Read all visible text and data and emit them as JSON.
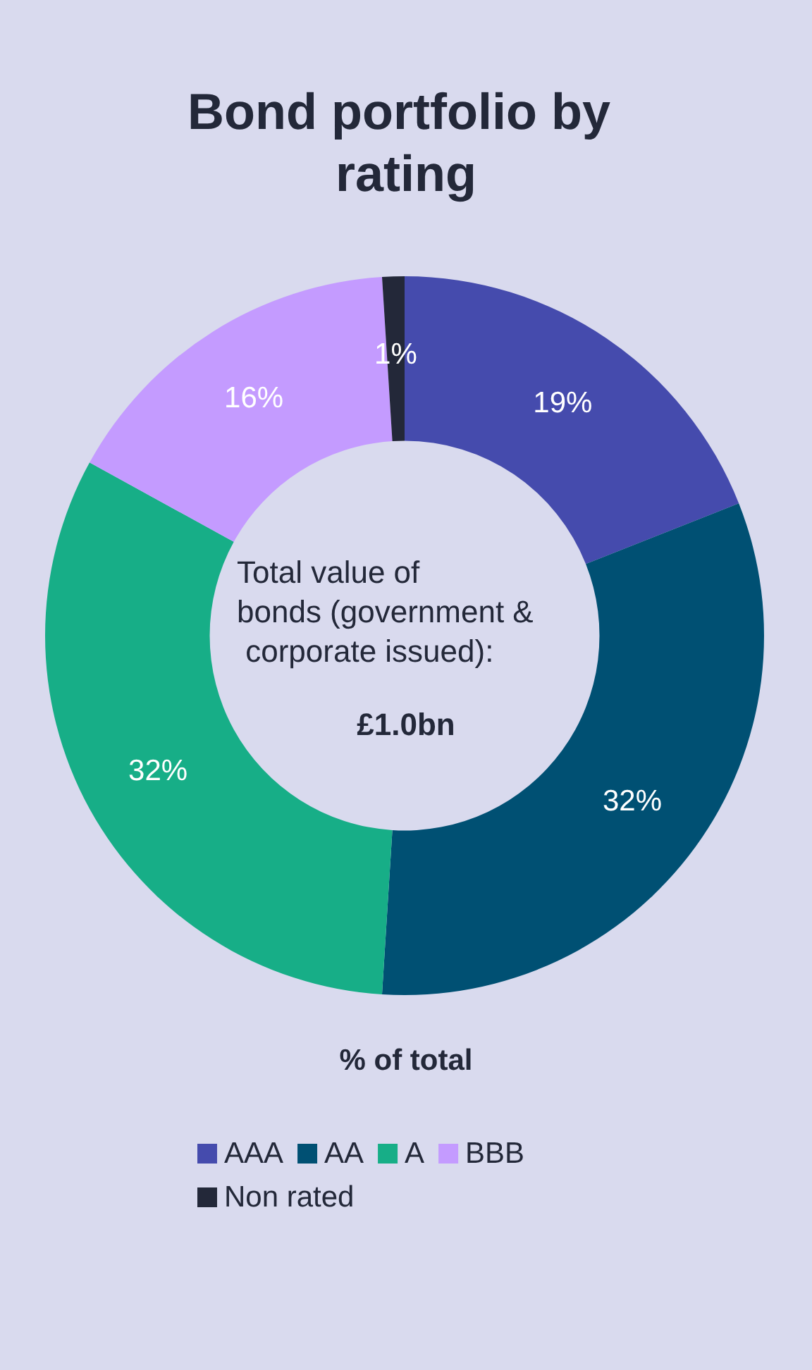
{
  "chart_data": {
    "type": "donut",
    "title": "Bond portfolio by rating",
    "legend_title": "% of total",
    "categories": [
      "AAA",
      "AA",
      "A",
      "BBB",
      "Non rated"
    ],
    "values": [
      19,
      32,
      32,
      16,
      1
    ],
    "value_labels": [
      "19%",
      "32%",
      "32%",
      "16%",
      "1%"
    ],
    "colors": [
      "#454bad",
      "#005073",
      "#17ae87",
      "#c49bff",
      "#232839"
    ],
    "annotations": [
      "Total value of bonds (government & corporate issued):",
      "£1.0bn"
    ],
    "legend": "bottom"
  }
}
